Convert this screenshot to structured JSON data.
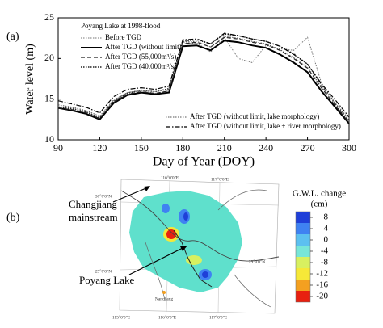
{
  "chart_data": [
    {
      "type": "line",
      "panel_label": "(a)",
      "annotation": "Poyang Lake at 1998-flood",
      "xlabel": "Day of Year (DOY)",
      "ylabel": "Water level (m)",
      "xlim": [
        90,
        300
      ],
      "xticks": [
        90,
        120,
        150,
        180,
        210,
        240,
        270,
        300
      ],
      "ylim": [
        10,
        25
      ],
      "yticks": [
        10,
        15,
        20,
        25
      ],
      "x": [
        90,
        100,
        110,
        120,
        130,
        140,
        150,
        160,
        170,
        180,
        190,
        200,
        210,
        220,
        230,
        240,
        250,
        260,
        270,
        280,
        290,
        300
      ],
      "series": [
        {
          "name": "Before TGD",
          "color": "#777777",
          "style": "dotted",
          "width": 1,
          "values": [
            14.1,
            13.9,
            13.5,
            12.7,
            14.8,
            15.8,
            16.0,
            15.7,
            16.0,
            21.8,
            21.9,
            20.8,
            22.6,
            20.0,
            19.5,
            21.6,
            21.2,
            21.0,
            22.6,
            17.0,
            14.5,
            12.6
          ]
        },
        {
          "name": "After TGD (without limit)",
          "color": "#000000",
          "style": "solid",
          "width": 2,
          "values": [
            13.9,
            13.6,
            13.2,
            12.5,
            14.5,
            15.5,
            15.8,
            15.6,
            15.8,
            21.5,
            21.6,
            21.0,
            22.2,
            22.0,
            21.6,
            21.3,
            20.5,
            19.5,
            18.3,
            16.0,
            14.0,
            12.0
          ]
        },
        {
          "name": "After TGD (55,000m³/s)",
          "color": "#222222",
          "style": "dashed",
          "width": 1.2,
          "values": [
            13.9,
            13.7,
            13.3,
            12.6,
            14.6,
            15.6,
            15.9,
            15.7,
            16.0,
            21.8,
            22.0,
            21.4,
            22.6,
            22.4,
            22.0,
            21.7,
            21.0,
            20.0,
            18.8,
            16.4,
            14.2,
            12.1
          ]
        },
        {
          "name": "After TGD (40,000m³/s)",
          "color": "#222222",
          "style": "dotted",
          "width": 1.4,
          "values": [
            14.0,
            13.8,
            13.4,
            12.7,
            14.7,
            15.7,
            16.1,
            15.9,
            16.3,
            22.1,
            22.3,
            21.8,
            23.0,
            22.8,
            22.4,
            22.1,
            21.5,
            20.6,
            19.3,
            16.8,
            14.4,
            12.2
          ]
        },
        {
          "name": "After TGD (without limit, lake morphology)",
          "color": "#555555",
          "style": "dotted",
          "width": 1,
          "values": [
            14.3,
            14.0,
            13.6,
            12.9,
            14.9,
            15.8,
            16.1,
            15.9,
            16.2,
            22.0,
            22.1,
            21.4,
            22.7,
            22.5,
            22.1,
            21.8,
            21.1,
            20.1,
            18.9,
            16.5,
            14.5,
            12.4
          ]
        },
        {
          "name": "After TGD (without limit, lake + river morphology)",
          "color": "#000000",
          "style": "dashdot",
          "width": 1.2,
          "values": [
            14.8,
            14.4,
            14.0,
            13.3,
            15.3,
            16.2,
            16.4,
            16.2,
            16.6,
            22.3,
            22.4,
            21.8,
            23.1,
            22.8,
            22.4,
            22.1,
            21.5,
            20.5,
            19.3,
            16.9,
            14.9,
            12.8
          ]
        }
      ]
    },
    {
      "type": "map",
      "panel_label": "(b)",
      "labels": [
        "Changjiang",
        "mainstream",
        "Poyang Lake",
        "Nanchang"
      ],
      "grid_labels": [
        "30°0'0\"N",
        "29°0'0\"N",
        "29°0'0\"N",
        "116°0'0\"E",
        "117°0'0\"E",
        "115°0'0\"E",
        "116°0'0\"E",
        "117°0'0\"E"
      ],
      "colorbar": {
        "title": "G.W.L. change",
        "unit": "(cm)",
        "ticks": [
          8,
          4,
          0,
          -4,
          -8,
          -12,
          -16,
          -20
        ],
        "colors": [
          "#1f3fd8",
          "#3f82f2",
          "#5cc0f0",
          "#78e6d8",
          "#d8f060",
          "#f6e838",
          "#f4a020",
          "#e82010"
        ]
      }
    }
  ]
}
